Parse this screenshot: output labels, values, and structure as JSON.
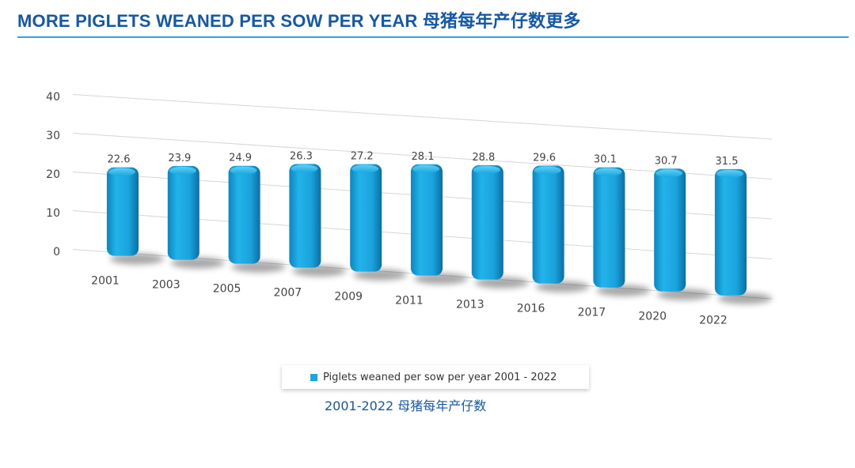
{
  "page": {
    "title": "MORE PIGLETS WEANED PER SOW PER YEAR 母猪每年产仔数更多",
    "caption": "2001-2022 母猪每年产仔数"
  },
  "colors": {
    "title": "#1458a8",
    "rule": "#2aa6dc",
    "bar": "#1aa6df"
  },
  "chart_data": {
    "type": "bar",
    "style": "3d-perspective",
    "categories": [
      "2001",
      "2003",
      "2005",
      "2007",
      "2009",
      "2011",
      "2013",
      "2016",
      "2017",
      "2020",
      "2022"
    ],
    "series": [
      {
        "name": "Piglets weaned per sow per year 2001 - 2022",
        "values": [
          22.6,
          23.9,
          24.9,
          26.3,
          27.2,
          28.1,
          28.8,
          29.6,
          30.1,
          30.7,
          31.5
        ],
        "data_labels": [
          "22.6",
          "23.9",
          "24.9",
          "26.3",
          "27.2",
          "28.1",
          "28.8",
          "29.6",
          "30.1",
          "30.7",
          "31.5"
        ]
      }
    ],
    "yticks": [
      "0",
      "10",
      "20",
      "30",
      "40"
    ],
    "ylim": [
      0,
      40
    ],
    "grid": true,
    "legend_position": "bottom"
  }
}
